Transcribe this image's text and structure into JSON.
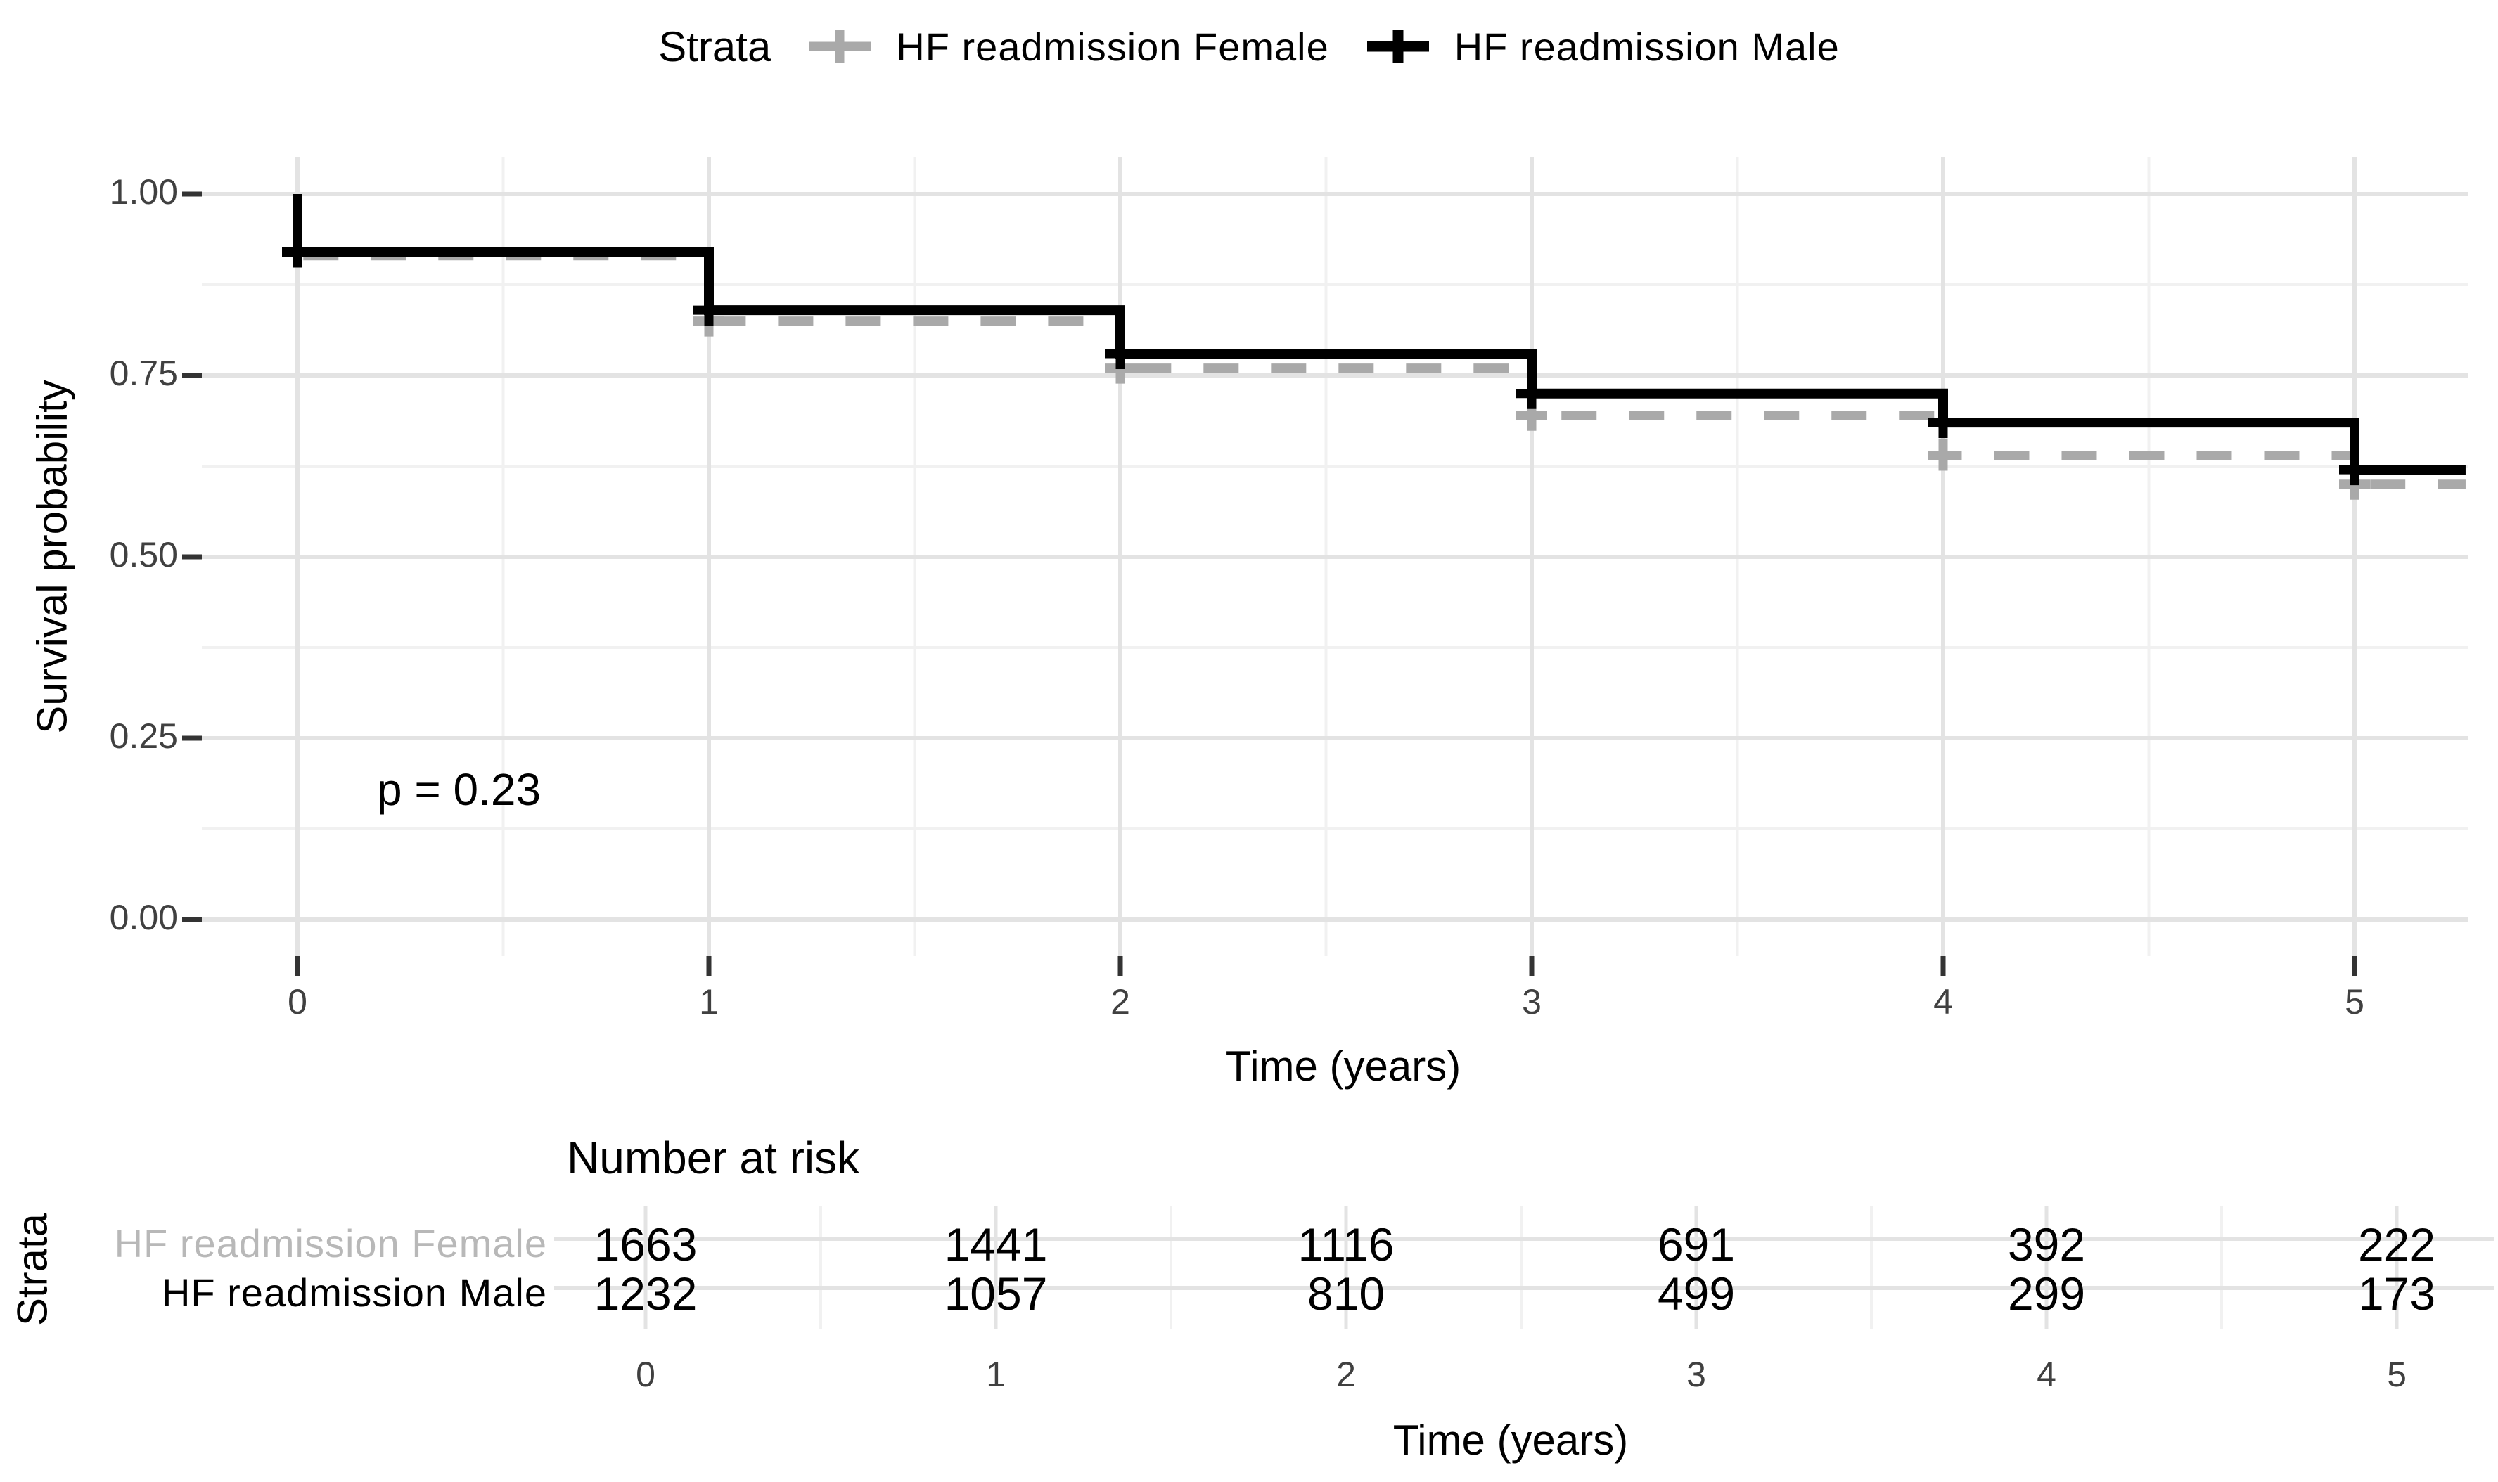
{
  "chart_data": {
    "type": "line",
    "subtype": "kaplan_meier_step_curve",
    "title": "",
    "legend_title": "Strata",
    "legend_position": "top",
    "xlabel": "Time (years)",
    "ylabel": "Survival probability",
    "annotation": "p = 0.23",
    "x_ticks": [
      "0",
      "1",
      "2",
      "3",
      "4",
      "5"
    ],
    "x_tick_values": [
      0,
      1,
      2,
      3,
      4,
      5
    ],
    "y_ticks": [
      "0.00",
      "0.25",
      "0.50",
      "0.75",
      "1.00"
    ],
    "y_tick_values": [
      0,
      0.25,
      0.5,
      0.75,
      1
    ],
    "xlim": [
      -0.23,
      5.29
    ],
    "ylim": [
      -0.054,
      1.054
    ],
    "grid": true,
    "series": [
      {
        "name": "HF readmission Female",
        "color": "#A9A9A9",
        "linestyle": "dashed",
        "start": [
          0,
          1.0
        ],
        "step_times": [
          0,
          1,
          2,
          3,
          4,
          5
        ],
        "step_levels": [
          0.915,
          0.825,
          0.76,
          0.695,
          0.64,
          0.6
        ],
        "end_time": 5.27,
        "censor_points": [
          [
            1,
            0.825
          ],
          [
            2,
            0.76
          ],
          [
            3,
            0.695
          ],
          [
            4,
            0.64
          ],
          [
            5,
            0.6
          ]
        ]
      },
      {
        "name": "HF readmission Male",
        "color": "#000000",
        "linestyle": "solid",
        "start": [
          0,
          1.0
        ],
        "step_times": [
          0,
          1,
          2,
          3,
          4,
          5
        ],
        "step_levels": [
          0.92,
          0.84,
          0.78,
          0.725,
          0.685,
          0.62
        ],
        "end_time": 5.27,
        "censor_points": [
          [
            0,
            0.92
          ],
          [
            1,
            0.84
          ],
          [
            2,
            0.78
          ],
          [
            3,
            0.725
          ],
          [
            4,
            0.685
          ],
          [
            5,
            0.62
          ]
        ]
      }
    ]
  },
  "risk_table": {
    "title": "Number at risk",
    "axis_label": "Strata",
    "x_ticks": [
      "0",
      "1",
      "2",
      "3",
      "4",
      "5"
    ],
    "x_tick_values": [
      0,
      1,
      2,
      3,
      4,
      5
    ],
    "xlabel": "Time (years)",
    "rows": [
      {
        "label": "HF readmission Female",
        "label_color": "#B8B8B8",
        "values": [
          "1663",
          "1441",
          "1116",
          "691",
          "392",
          "222"
        ]
      },
      {
        "label": "HF readmission Male",
        "label_color": "#000000",
        "values": [
          "1232",
          "1057",
          "810",
          "499",
          "299",
          "173"
        ]
      }
    ]
  },
  "colors": {
    "grid_major": "#E3E3E3",
    "grid_minor": "#F1F1F1",
    "axis_tick": "#333333",
    "tick_label": "#404040"
  }
}
